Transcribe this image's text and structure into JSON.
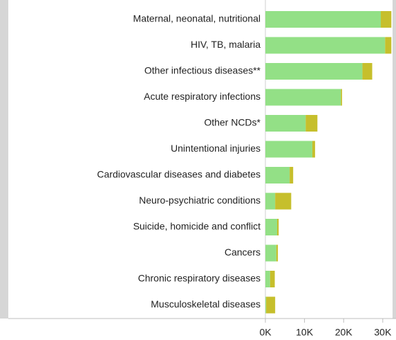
{
  "chart_data": {
    "type": "stacked_barh",
    "categories": [
      "Maternal, neonatal, nutritional",
      "HIV, TB, malaria",
      "Other infectious diseases**",
      "Acute respiratory infections",
      "Other NCDs*",
      "Unintentional injuries",
      "Cardiovascular diseases and diabetes",
      "Neuro-psychiatric conditions",
      "Suicide, homicide and conflict",
      "Cancers",
      "Chronic respiratory diseases",
      "Musculoskeletal diseases"
    ],
    "series": [
      {
        "color": "#93e086",
        "values": [
          29500,
          30600,
          24800,
          19300,
          10300,
          12000,
          6200,
          2500,
          3000,
          2800,
          1200,
          200
        ]
      },
      {
        "color": "#c6bf2c",
        "values": [
          2700,
          1600,
          2500,
          300,
          3000,
          700,
          900,
          4100,
          400,
          400,
          1200,
          2300
        ]
      }
    ],
    "xlim": [
      0,
      32500
    ],
    "xticks": [
      {
        "value": 0,
        "label": "0K"
      },
      {
        "value": 10000,
        "label": "10K"
      },
      {
        "value": 20000,
        "label": "20K"
      },
      {
        "value": 30000,
        "label": "30K"
      }
    ]
  }
}
